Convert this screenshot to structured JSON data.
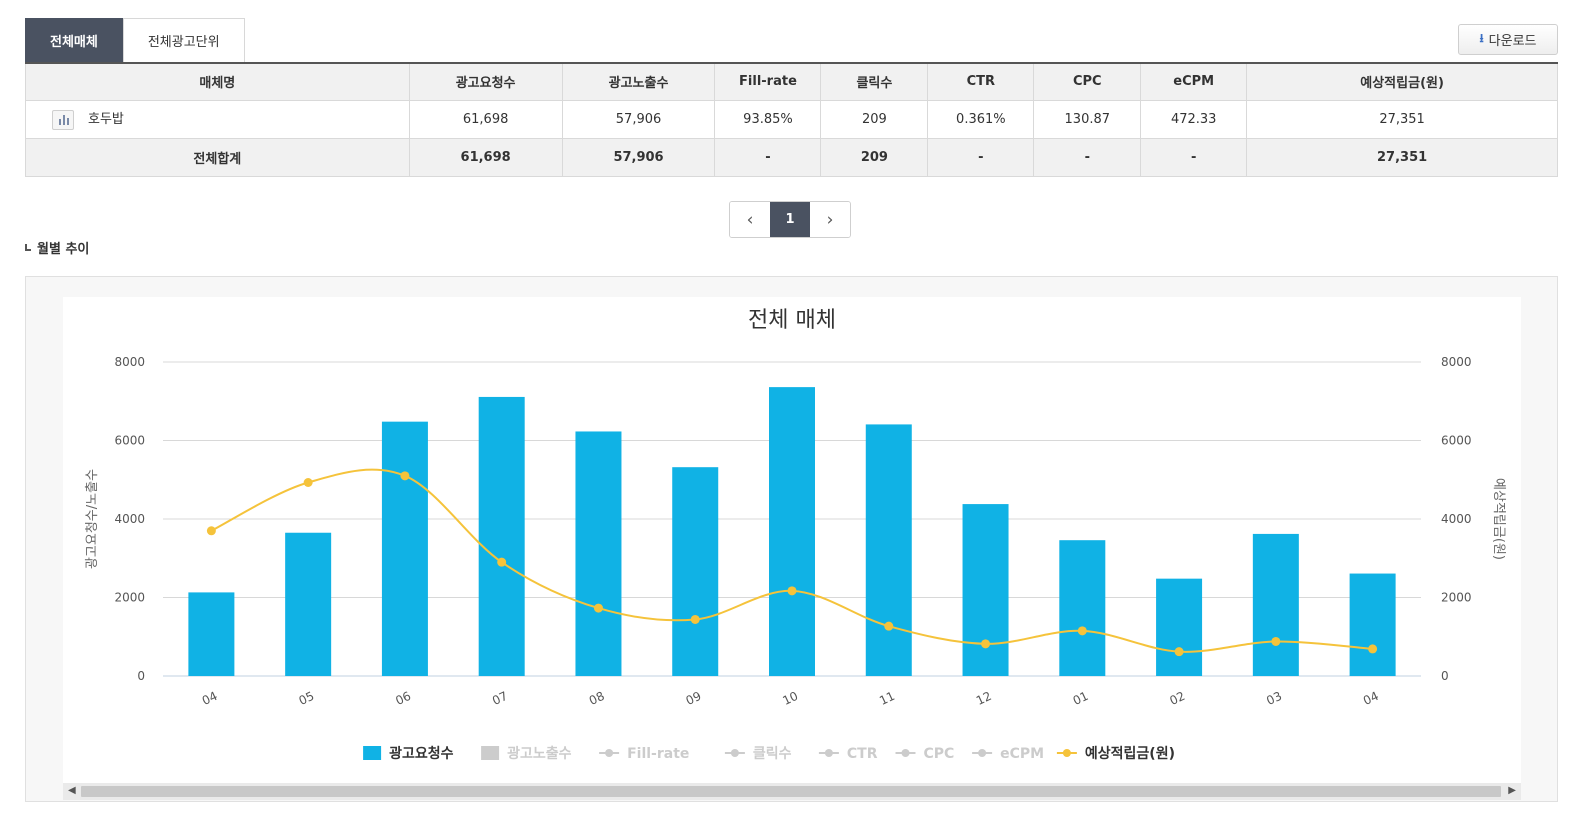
{
  "tabs": [
    {
      "label": "전체매체",
      "active": true
    },
    {
      "label": "전체광고단위",
      "active": false
    }
  ],
  "download_label": "다운로드",
  "table": {
    "headers": [
      "매체명",
      "광고요청수",
      "광고노출수",
      "Fill-rate",
      "클릭수",
      "CTR",
      "CPC",
      "eCPM",
      "예상적립금(원)"
    ],
    "rows": [
      [
        "호두밥",
        "61,698",
        "57,906",
        "93.85%",
        "209",
        "0.361%",
        "130.87",
        "472.33",
        "27,351"
      ]
    ],
    "total": [
      "전체합계",
      "61,698",
      "57,906",
      "-",
      "209",
      "-",
      "-",
      "-",
      "27,351"
    ]
  },
  "pagination": {
    "prev": "‹",
    "current": "1",
    "next": "›"
  },
  "section_title": "월별 추이",
  "chart_data": {
    "type": "bar",
    "title": "전체 매체",
    "categories": [
      "04",
      "05",
      "06",
      "07",
      "08",
      "09",
      "10",
      "11",
      "12",
      "01",
      "02",
      "03",
      "04"
    ],
    "series": [
      {
        "name": "광고요청수",
        "type": "bar",
        "axis": "left",
        "color": "#10b2e5",
        "visible": true,
        "values": [
          2130,
          3650,
          6480,
          7110,
          6230,
          5320,
          7360,
          6410,
          4380,
          3460,
          2480,
          3620,
          2610
        ]
      },
      {
        "name": "광고노출수",
        "type": "bar",
        "axis": "left",
        "color": "#cccccc",
        "visible": false
      },
      {
        "name": "Fill-rate",
        "type": "line",
        "visible": false
      },
      {
        "name": "클릭수",
        "type": "line",
        "visible": false
      },
      {
        "name": "CTR",
        "type": "line",
        "visible": false
      },
      {
        "name": "CPC",
        "type": "line",
        "visible": false
      },
      {
        "name": "eCPM",
        "type": "line",
        "visible": false
      },
      {
        "name": "예상적립금(원)",
        "type": "line",
        "axis": "right",
        "color": "#f5c33b",
        "visible": true,
        "values": [
          3700,
          4930,
          5100,
          2900,
          1730,
          1440,
          2170,
          1270,
          820,
          1150,
          620,
          880,
          690
        ]
      }
    ],
    "ylabel_left": "광고요청수/노출수",
    "ylabel_right": "예상적립금(원)",
    "ylim": [
      0,
      8000
    ],
    "y2lim": [
      0,
      8000
    ],
    "yticks": [
      0,
      2000,
      4000,
      6000,
      8000
    ],
    "grid": true,
    "legend_position": "bottom-center",
    "hidden_color": "#cccccc"
  },
  "scrollbar": {
    "left": "◀",
    "right": "▶"
  }
}
